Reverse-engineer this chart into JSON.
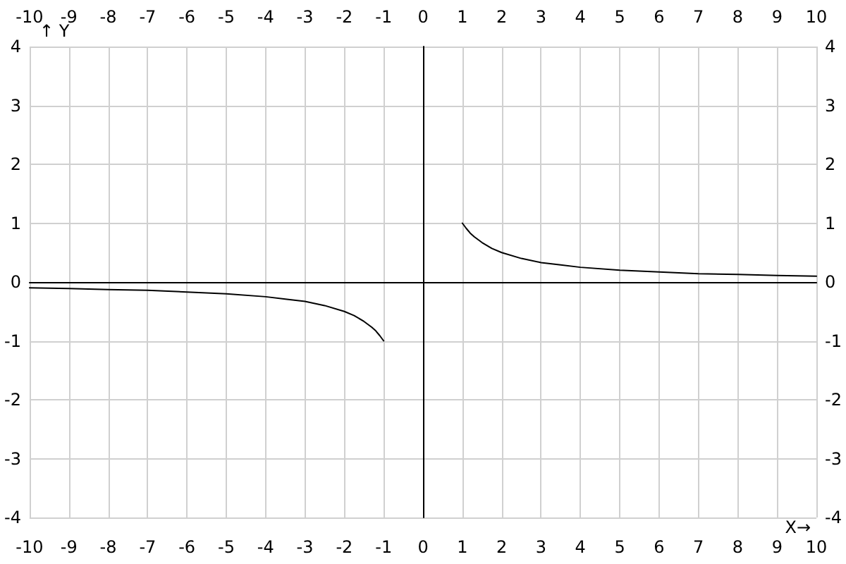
{
  "chart_data": {
    "type": "line",
    "xlabel": "X→",
    "ylabel": "↑ Y",
    "series": [
      {
        "color": "#000000",
        "x": [
          -10,
          -9,
          -8,
          -7,
          -6,
          -5,
          -4,
          -3.5,
          -3,
          -2.5,
          -2,
          -1.75,
          -1.5,
          -1.3,
          -1.2,
          -1.1,
          -1
        ],
        "values": [
          -0.1,
          -0.11,
          -0.13,
          -0.14,
          -0.17,
          -0.2,
          -0.25,
          -0.29,
          -0.33,
          -0.4,
          -0.5,
          -0.57,
          -0.67,
          -0.77,
          -0.83,
          -0.91,
          -1
        ]
      },
      {
        "color": "#000000",
        "x": [
          1,
          1.1,
          1.2,
          1.3,
          1.5,
          1.75,
          2,
          2.5,
          3,
          3.5,
          4,
          5,
          6,
          7,
          8,
          9,
          10
        ],
        "values": [
          1,
          0.91,
          0.83,
          0.77,
          0.67,
          0.57,
          0.5,
          0.4,
          0.33,
          0.29,
          0.25,
          0.2,
          0.17,
          0.14,
          0.13,
          0.11,
          0.1
        ]
      }
    ],
    "xlim": [
      -10,
      10
    ],
    "xticks": [
      -10,
      -9,
      -8,
      -7,
      -6,
      -5,
      -4,
      -3,
      -2,
      -1,
      0,
      1,
      2,
      3,
      4,
      5,
      6,
      7,
      8,
      9,
      10
    ],
    "x2lim": [
      -10,
      10
    ],
    "x2ticks": [
      -10,
      -9,
      -8,
      -7,
      -6,
      -5,
      -4,
      -3,
      -2,
      -1,
      0,
      1,
      2,
      3,
      4,
      5,
      6,
      7,
      8,
      9,
      10
    ],
    "ylim": [
      -4,
      4
    ],
    "yticks": [
      -4,
      -3,
      -2,
      -1,
      0,
      1,
      2,
      3,
      4
    ],
    "y2lim": [
      -4,
      4
    ],
    "y2ticks": [
      -4,
      -3,
      -2,
      -1,
      0,
      1,
      2,
      3,
      4
    ],
    "grid": true,
    "marker": "none",
    "line_style": "solid"
  }
}
